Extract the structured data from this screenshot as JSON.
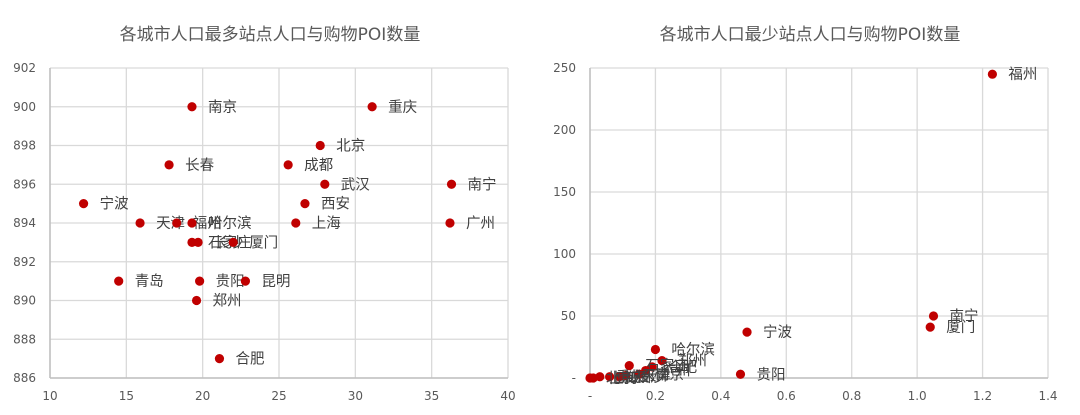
{
  "chart_data": [
    {
      "type": "scatter",
      "title": "各城市人口最多站点人口与购物POI数量",
      "xlabel": "",
      "ylabel": "",
      "xlim": [
        10,
        40
      ],
      "ylim": [
        886,
        902
      ],
      "xticks": [
        10,
        15,
        20,
        25,
        30,
        35,
        40
      ],
      "yticks": [
        886,
        888,
        890,
        892,
        894,
        896,
        898,
        900,
        902
      ],
      "grid": true,
      "legend": null,
      "marker_color": "#c00000",
      "points": [
        {
          "label": "南京",
          "x": 19.3,
          "y": 900
        },
        {
          "label": "重庆",
          "x": 31.1,
          "y": 900
        },
        {
          "label": "北京",
          "x": 27.7,
          "y": 898
        },
        {
          "label": "长春",
          "x": 17.8,
          "y": 897
        },
        {
          "label": "成都",
          "x": 25.6,
          "y": 897
        },
        {
          "label": "武汉",
          "x": 28.0,
          "y": 896
        },
        {
          "label": "南宁",
          "x": 36.3,
          "y": 896
        },
        {
          "label": "宁波",
          "x": 12.2,
          "y": 895
        },
        {
          "label": "西安",
          "x": 26.7,
          "y": 895
        },
        {
          "label": "天津",
          "x": 15.9,
          "y": 894
        },
        {
          "label": "福州",
          "x": 18.3,
          "y": 894
        },
        {
          "label": "哈尔滨",
          "x": 19.3,
          "y": 894
        },
        {
          "label": "上海",
          "x": 26.1,
          "y": 894
        },
        {
          "label": "广州",
          "x": 36.2,
          "y": 894
        },
        {
          "label": "石家庄",
          "x": 19.3,
          "y": 893
        },
        {
          "label": "长沙",
          "x": 19.7,
          "y": 893
        },
        {
          "label": "厦门",
          "x": 22.0,
          "y": 893
        },
        {
          "label": "青岛",
          "x": 14.5,
          "y": 891
        },
        {
          "label": "贵阳",
          "x": 19.8,
          "y": 891
        },
        {
          "label": "昆明",
          "x": 22.8,
          "y": 891
        },
        {
          "label": "郑州",
          "x": 19.6,
          "y": 890
        },
        {
          "label": "合肥",
          "x": 21.1,
          "y": 887
        }
      ]
    },
    {
      "type": "scatter",
      "title": "各城市人口最少站点人口与购物POI数量",
      "xlabel": "",
      "ylabel": "",
      "xlim": [
        0,
        1.4
      ],
      "ylim": [
        0,
        250
      ],
      "xticks": [
        "-",
        "0.2",
        "0.4",
        "0.6",
        "0.8",
        "1.0",
        "1.2",
        "1.4"
      ],
      "yticks": [
        "-",
        "50",
        "100",
        "150",
        "200",
        "250"
      ],
      "grid": true,
      "legend": null,
      "marker_color": "#c00000",
      "points": [
        {
          "label": "福州",
          "x": 1.23,
          "y": 245
        },
        {
          "label": "南宁",
          "x": 1.05,
          "y": 50
        },
        {
          "label": "厦门",
          "x": 1.04,
          "y": 41
        },
        {
          "label": "宁波",
          "x": 0.48,
          "y": 37
        },
        {
          "label": "哈尔滨",
          "x": 0.2,
          "y": 23
        },
        {
          "label": "贵阳",
          "x": 0.46,
          "y": 3
        },
        {
          "label": "郑州",
          "x": 0.22,
          "y": 14
        },
        {
          "label": "合肥",
          "x": 0.19,
          "y": 9
        },
        {
          "label": "石家庄",
          "x": 0.12,
          "y": 10
        },
        {
          "label": "广州",
          "x": 0.17,
          "y": 6
        },
        {
          "label": "南京",
          "x": 0.15,
          "y": 3
        },
        {
          "label": "天津",
          "x": 0.11,
          "y": 2
        },
        {
          "label": "长沙",
          "x": 0.09,
          "y": 1
        },
        {
          "label": "成都",
          "x": 0.06,
          "y": 1
        },
        {
          "label": "重庆",
          "x": 0.03,
          "y": 1
        },
        {
          "label": "上海",
          "x": 0.01,
          "y": 0
        },
        {
          "label": "北京",
          "x": 0.0,
          "y": 0
        }
      ]
    }
  ]
}
